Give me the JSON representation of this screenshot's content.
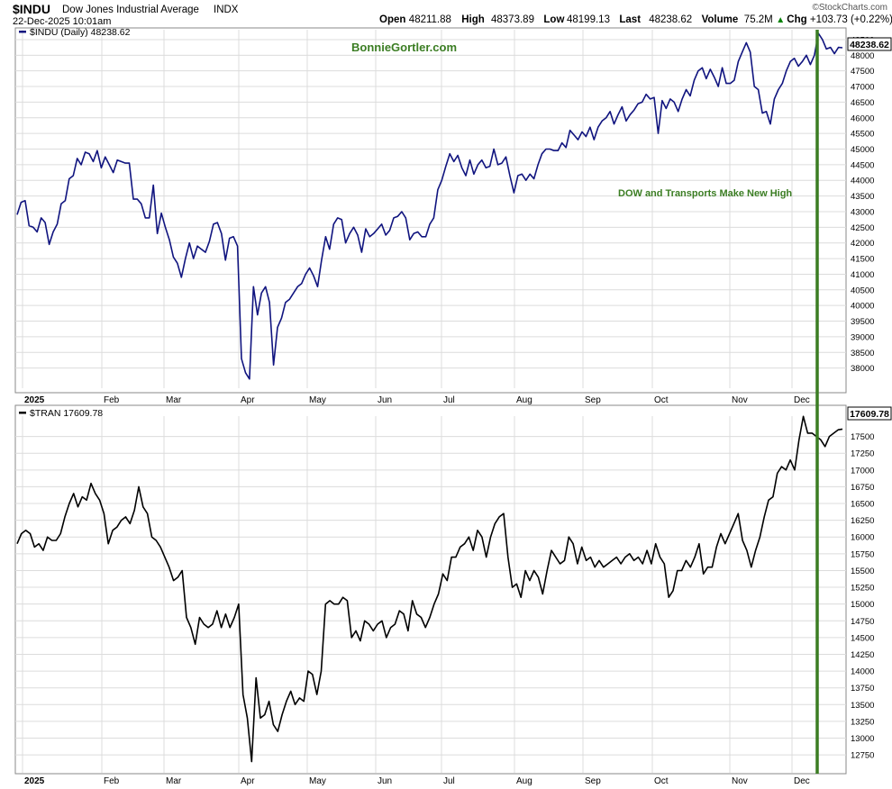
{
  "header": {
    "symbol": "$INDU",
    "name": "Dow Jones Industrial Average",
    "exchange": "INDX",
    "datetime": "22-Dec-2025 10:01am",
    "brand": "©StockCharts.com",
    "quote": [
      {
        "label": "Open",
        "value": "48211.88"
      },
      {
        "label": "High",
        "value": "48373.89"
      },
      {
        "label": "Low",
        "value": "48199.13"
      },
      {
        "label": "Last",
        "value": "48238.62"
      },
      {
        "label": "Volume",
        "value": "75.2M"
      },
      {
        "label": "Chg",
        "value": "+103.73 (+0.22%)"
      }
    ],
    "chg_arrow": "up-arrow-icon"
  },
  "colors": {
    "indu_line": "#10147f",
    "tran_line": "#000000",
    "annotation_green": "#3b7d23",
    "grid": "#dcdcdc",
    "chg_up": "#008000"
  },
  "annotations": {
    "watermark": "BonnieGortler.com",
    "note": "DOW and Transports Make New High",
    "vertical_line_date": "2025-12-11"
  },
  "chart_data": [
    {
      "type": "line",
      "legend": "$INDU (Daily) 48238.62",
      "last_label": "48238.62",
      "ylim": [
        37500,
        48700
      ],
      "y_ticks": [
        38000,
        38500,
        39000,
        39500,
        40000,
        40500,
        41000,
        41500,
        42000,
        42500,
        43000,
        43500,
        44000,
        44500,
        45000,
        45500,
        46000,
        46500,
        47000,
        47500,
        48000,
        48500
      ],
      "x_ticks": [
        "2025",
        "Feb",
        "Mar",
        "Apr",
        "May",
        "Jun",
        "Jul",
        "Aug",
        "Sep",
        "Oct",
        "Nov",
        "Dec"
      ],
      "grid": true,
      "series": [
        {
          "values": [
            42900,
            43300,
            43350,
            42550,
            42500,
            42350,
            42800,
            42650,
            41950,
            42350,
            42600,
            43250,
            43350,
            44050,
            44150,
            44700,
            44500,
            44900,
            44850,
            44600,
            44950,
            44400,
            44750,
            44500,
            44250,
            44650,
            44600,
            44550,
            44550,
            43400,
            43400,
            43250,
            42800,
            42800,
            43850,
            42300,
            42950,
            42500,
            42100,
            41550,
            41350,
            40900,
            41500,
            42000,
            41500,
            41900,
            41800,
            41700,
            42050,
            42600,
            42650,
            42300,
            41450,
            42150,
            42200,
            41900,
            38300,
            37850,
            37650,
            40600,
            39700,
            40400,
            40600,
            40100,
            38100,
            39300,
            39600,
            40100,
            40200,
            40400,
            40600,
            40700,
            41000,
            41200,
            40950,
            40600,
            41450,
            42200,
            41800,
            42600,
            42800,
            42750,
            42000,
            42300,
            42500,
            42250,
            41700,
            42450,
            42200,
            42300,
            42450,
            42600,
            42250,
            42400,
            42800,
            42850,
            43000,
            42800,
            42100,
            42300,
            42350,
            42200,
            42200,
            42600,
            42800,
            43700,
            44000,
            44450,
            44850,
            44600,
            44800,
            44400,
            44150,
            44650,
            44200,
            44500,
            44650,
            44400,
            44450,
            45000,
            44500,
            44550,
            44750,
            44150,
            43600,
            44150,
            44200,
            44000,
            44200,
            44050,
            44500,
            44850,
            45000,
            45000,
            44950,
            44950,
            45200,
            45050,
            45600,
            45450,
            45300,
            45550,
            45400,
            45700,
            45300,
            45700,
            45900,
            46000,
            46200,
            45800,
            46100,
            46350,
            45900,
            46100,
            46250,
            46450,
            46500,
            46750,
            46600,
            46650,
            45500,
            46550,
            46300,
            46600,
            46500,
            46200,
            46600,
            46900,
            46700,
            47200,
            47500,
            47600,
            47250,
            47550,
            47300,
            47000,
            47600,
            47100,
            47100,
            47200,
            47800,
            48100,
            48400,
            48100,
            47000,
            46900,
            46150,
            46200,
            45800,
            46600,
            46900,
            47100,
            47500,
            47800,
            47900,
            47650,
            47800,
            48000,
            47700,
            48000,
            48700,
            48500,
            48200,
            48250,
            48050,
            48250,
            48238
          ]
        }
      ]
    },
    {
      "type": "line",
      "legend": "$TRAN 17609.78",
      "last_label": "17609.78",
      "ylim": [
        12550,
        17750
      ],
      "y_ticks": [
        12750,
        13000,
        13250,
        13500,
        13750,
        14000,
        14250,
        14500,
        14750,
        15000,
        15250,
        15500,
        15750,
        16000,
        16250,
        16500,
        16750,
        17000,
        17250,
        17500
      ],
      "x_ticks": [
        "2025",
        "Feb",
        "Mar",
        "Apr",
        "May",
        "Jun",
        "Jul",
        "Aug",
        "Sep",
        "Oct",
        "Nov",
        "Dec"
      ],
      "grid": true,
      "series": [
        {
          "values": [
            15900,
            16050,
            16100,
            16050,
            15850,
            15900,
            15800,
            16000,
            15950,
            15950,
            16050,
            16300,
            16500,
            16650,
            16450,
            16600,
            16550,
            16800,
            16650,
            16550,
            16350,
            15900,
            16100,
            16150,
            16250,
            16300,
            16200,
            16400,
            16750,
            16450,
            16350,
            16000,
            15950,
            15850,
            15700,
            15550,
            15350,
            15400,
            15500,
            14800,
            14650,
            14400,
            14800,
            14700,
            14650,
            14700,
            14900,
            14650,
            14850,
            14650,
            14800,
            15000,
            13650,
            13300,
            12650,
            13900,
            13300,
            13350,
            13550,
            13200,
            13100,
            13350,
            13550,
            13700,
            13500,
            13600,
            13550,
            14000,
            13950,
            13650,
            14000,
            15000,
            15050,
            15000,
            15000,
            15100,
            15050,
            14500,
            14600,
            14450,
            14750,
            14700,
            14600,
            14700,
            14750,
            14500,
            14650,
            14700,
            14900,
            14850,
            14600,
            15050,
            14850,
            14800,
            14650,
            14800,
            15000,
            15150,
            15450,
            15350,
            15700,
            15700,
            15850,
            15900,
            16000,
            15800,
            16100,
            16000,
            15700,
            16000,
            16200,
            16300,
            16350,
            15700,
            15250,
            15300,
            15100,
            15500,
            15350,
            15500,
            15400,
            15150,
            15500,
            15800,
            15700,
            15600,
            15650,
            16000,
            15900,
            15600,
            15850,
            15650,
            15700,
            15550,
            15650,
            15550,
            15600,
            15650,
            15700,
            15600,
            15700,
            15750,
            15650,
            15700,
            15600,
            15800,
            15600,
            15900,
            15700,
            15600,
            15100,
            15200,
            15500,
            15500,
            15650,
            15550,
            15700,
            15900,
            15450,
            15550,
            15550,
            15850,
            16050,
            15900,
            16050,
            16200,
            16350,
            15950,
            15800,
            15550,
            15800,
            16000,
            16300,
            16550,
            16600,
            16950,
            17050,
            17000,
            17150,
            17000,
            17450,
            17800,
            17550,
            17550,
            17500,
            17450,
            17350,
            17500,
            17550,
            17600,
            17609.78
          ]
        }
      ]
    }
  ]
}
